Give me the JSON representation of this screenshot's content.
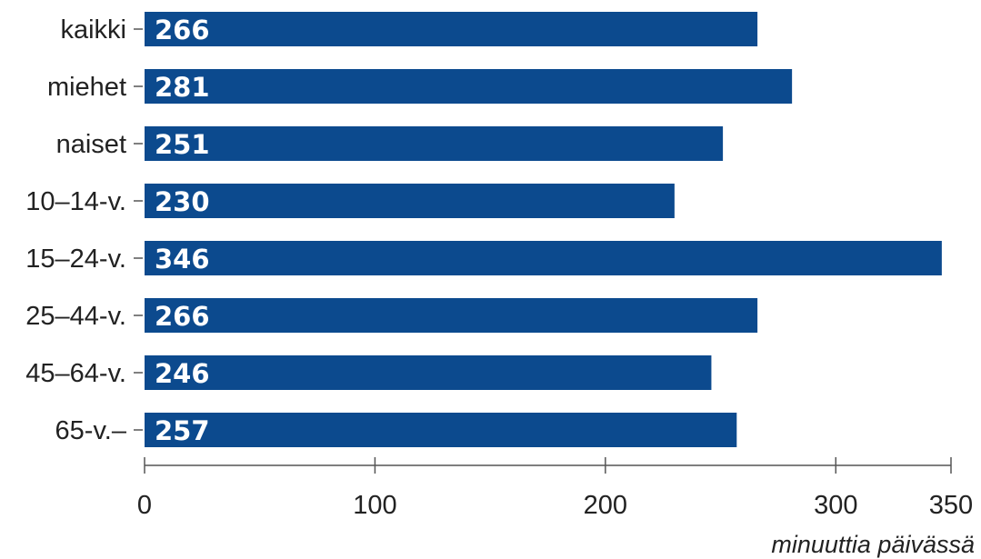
{
  "chart_data": {
    "type": "bar",
    "orientation": "horizontal",
    "categories": [
      "kaikki",
      "miehet",
      "naiset",
      "10–14-v.",
      "15–24-v.",
      "25–44-v.",
      "45–64-v.",
      "65-v.–"
    ],
    "values": [
      266,
      281,
      251,
      230,
      346,
      266,
      246,
      257
    ],
    "xlabel": "minuuttia päivässä",
    "ylabel": "",
    "xlim": [
      0,
      350
    ],
    "xticks": [
      0,
      100,
      200,
      300,
      350
    ],
    "bar_color": "#0c4a8e",
    "value_label_color": "#ffffff",
    "grid": false,
    "legend": "none"
  }
}
